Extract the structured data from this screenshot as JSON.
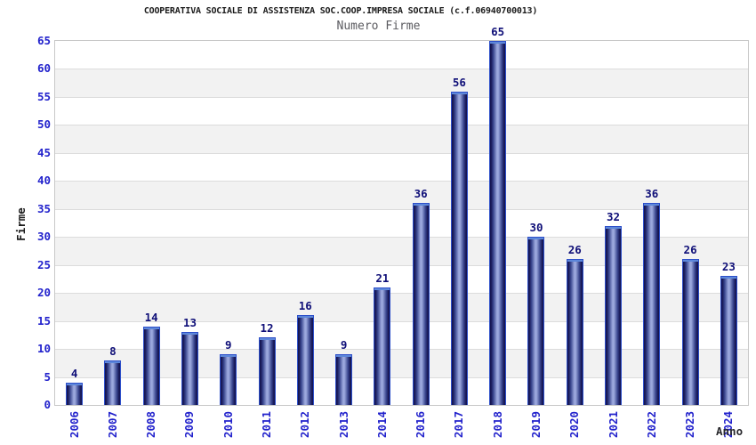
{
  "chart_data": {
    "type": "bar",
    "title": "COOPERATIVA SOCIALE DI ASSISTENZA SOC.COOP.IMPRESA SOCIALE (c.f.06940700013)",
    "subtitle": "Numero Firme",
    "xlabel": "Anno",
    "ylabel": "Firme",
    "categories": [
      "2006",
      "2007",
      "2008",
      "2009",
      "2010",
      "2011",
      "2012",
      "2013",
      "2014",
      "2016",
      "2017",
      "2018",
      "2019",
      "2020",
      "2021",
      "2022",
      "2023",
      "2024"
    ],
    "values": [
      4,
      8,
      14,
      13,
      9,
      12,
      16,
      9,
      21,
      36,
      56,
      65,
      30,
      26,
      32,
      36,
      26,
      23
    ],
    "ylim": [
      0,
      65
    ],
    "ytick_step": 5,
    "yticks": [
      0,
      5,
      10,
      15,
      20,
      25,
      30,
      35,
      40,
      45,
      50,
      55,
      60,
      65
    ],
    "grid": true,
    "legend": "none",
    "layout": {
      "bar_labels": "above-bars",
      "x_labels_rotated_deg": -90,
      "alternating_bands": true
    },
    "colors": {
      "bar_edge": "#2d4fc9",
      "bar_dark": "#151553",
      "bar_mid": "#3a478f",
      "bar_light": "#9ba8dd",
      "bar_cap": "#5d87da",
      "tick_label": "#2222cc",
      "value_label": "#0f0f78",
      "band": "#f2f2f2",
      "gridline": "#dcdcdc",
      "plot_border": "#c8c8c8",
      "title": "#1a1a1a",
      "subtitle": "#5a5a5f",
      "axis_title": "#28282c"
    }
  }
}
